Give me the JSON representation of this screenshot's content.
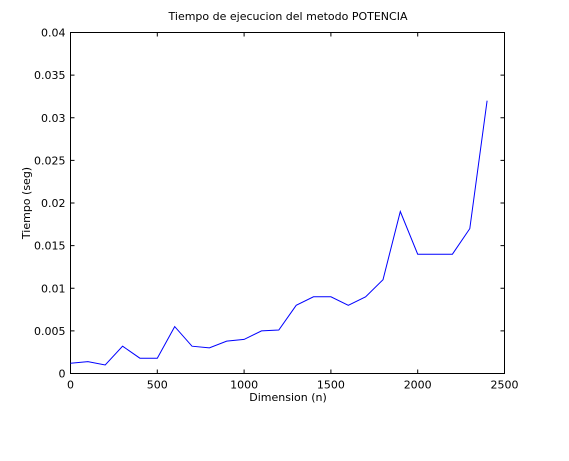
{
  "chart_data": {
    "type": "line",
    "title": "Tiempo de ejecucion del metodo POTENCIA",
    "xlabel": "Dimension (n)",
    "ylabel": "Tiempo (seg)",
    "xlim": [
      0,
      2500
    ],
    "ylim": [
      0,
      0.04
    ],
    "grid": false,
    "x_ticks": [
      0,
      500,
      1000,
      1500,
      2000,
      2500
    ],
    "y_ticks": [
      0,
      0.005,
      0.01,
      0.015,
      0.02,
      0.025,
      0.03,
      0.035,
      0.04
    ],
    "x_tick_labels": [
      "0",
      "500",
      "1000",
      "1500",
      "2000",
      "2500"
    ],
    "y_tick_labels": [
      "0",
      "0.005",
      "0.01",
      "0.015",
      "0.02",
      "0.025",
      "0.03",
      "0.035",
      "0.04"
    ],
    "color": "#0000ff",
    "x": [
      0,
      100,
      200,
      300,
      400,
      500,
      600,
      700,
      800,
      900,
      1000,
      1100,
      1200,
      1300,
      1400,
      1500,
      1600,
      1700,
      1800,
      1900,
      2000,
      2100,
      2200,
      2300,
      2400
    ],
    "y": [
      0.0012,
      0.0014,
      0.001,
      0.0032,
      0.0018,
      0.0018,
      0.0055,
      0.0032,
      0.003,
      0.0038,
      0.004,
      0.005,
      0.0051,
      0.008,
      0.009,
      0.009,
      0.008,
      0.009,
      0.011,
      0.019,
      0.014,
      0.014,
      0.014,
      0.017,
      0.032
    ]
  }
}
